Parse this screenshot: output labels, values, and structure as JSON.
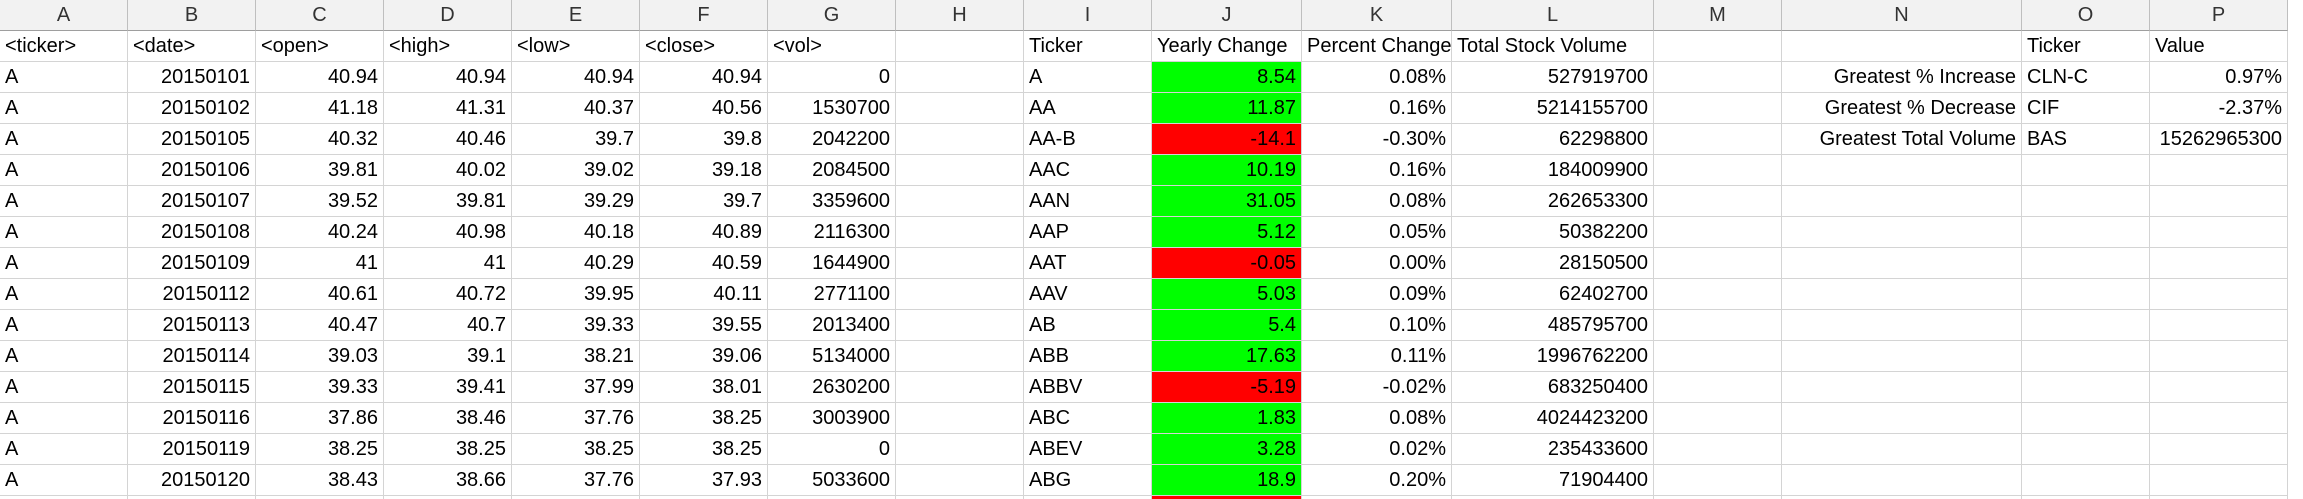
{
  "colors": {
    "positive": "#00ff00",
    "negative": "#ff0000",
    "header": "#f2f2f2",
    "grid": "#d4d4d4"
  },
  "column_letters": [
    "A",
    "B",
    "C",
    "D",
    "E",
    "F",
    "G",
    "H",
    "I",
    "J",
    "K",
    "L",
    "M",
    "N",
    "O",
    "P"
  ],
  "header_row": {
    "A": "<ticker>",
    "B": "<date>",
    "C": "<open>",
    "D": "<high>",
    "E": "<low>",
    "F": "<close>",
    "G": "<vol>",
    "I": "Ticker",
    "J": "Yearly Change",
    "K": "Percent Change",
    "L": "Total Stock Volume",
    "O": "Ticker",
    "P": "Value"
  },
  "raw_rows": [
    [
      "A",
      "20150101",
      "40.94",
      "40.94",
      "40.94",
      "40.94",
      "0"
    ],
    [
      "A",
      "20150102",
      "41.18",
      "41.31",
      "40.37",
      "40.56",
      "1530700"
    ],
    [
      "A",
      "20150105",
      "40.32",
      "40.46",
      "39.7",
      "39.8",
      "2042200"
    ],
    [
      "A",
      "20150106",
      "39.81",
      "40.02",
      "39.02",
      "39.18",
      "2084500"
    ],
    [
      "A",
      "20150107",
      "39.52",
      "39.81",
      "39.29",
      "39.7",
      "3359600"
    ],
    [
      "A",
      "20150108",
      "40.24",
      "40.98",
      "40.18",
      "40.89",
      "2116300"
    ],
    [
      "A",
      "20150109",
      "41",
      "41",
      "40.29",
      "40.59",
      "1644900"
    ],
    [
      "A",
      "20150112",
      "40.61",
      "40.72",
      "39.95",
      "40.11",
      "2771100"
    ],
    [
      "A",
      "20150113",
      "40.47",
      "40.7",
      "39.33",
      "39.55",
      "2013400"
    ],
    [
      "A",
      "20150114",
      "39.03",
      "39.1",
      "38.21",
      "39.06",
      "5134000"
    ],
    [
      "A",
      "20150115",
      "39.33",
      "39.41",
      "37.99",
      "38.01",
      "2630200"
    ],
    [
      "A",
      "20150116",
      "37.86",
      "38.46",
      "37.76",
      "38.25",
      "3003900"
    ],
    [
      "A",
      "20150119",
      "38.25",
      "38.25",
      "38.25",
      "38.25",
      "0"
    ],
    [
      "A",
      "20150120",
      "38.43",
      "38.66",
      "37.76",
      "37.93",
      "5033600"
    ]
  ],
  "summary_rows": [
    {
      "ticker": "A",
      "yearly_change": "8.54",
      "sign": "pos",
      "percent": "0.08%",
      "volume": "527919700"
    },
    {
      "ticker": "AA",
      "yearly_change": "11.87",
      "sign": "pos",
      "percent": "0.16%",
      "volume": "5214155700"
    },
    {
      "ticker": "AA-B",
      "yearly_change": "-14.1",
      "sign": "neg",
      "percent": "-0.30%",
      "volume": "62298800"
    },
    {
      "ticker": "AAC",
      "yearly_change": "10.19",
      "sign": "pos",
      "percent": "0.16%",
      "volume": "184009900"
    },
    {
      "ticker": "AAN",
      "yearly_change": "31.05",
      "sign": "pos",
      "percent": "0.08%",
      "volume": "262653300"
    },
    {
      "ticker": "AAP",
      "yearly_change": "5.12",
      "sign": "pos",
      "percent": "0.05%",
      "volume": "50382200"
    },
    {
      "ticker": "AAT",
      "yearly_change": "-0.05",
      "sign": "neg",
      "percent": "0.00%",
      "volume": "28150500"
    },
    {
      "ticker": "AAV",
      "yearly_change": "5.03",
      "sign": "pos",
      "percent": "0.09%",
      "volume": "62402700"
    },
    {
      "ticker": "AB",
      "yearly_change": "5.4",
      "sign": "pos",
      "percent": "0.10%",
      "volume": "485795700"
    },
    {
      "ticker": "ABB",
      "yearly_change": "17.63",
      "sign": "pos",
      "percent": "0.11%",
      "volume": "1996762200"
    },
    {
      "ticker": "ABBV",
      "yearly_change": "-5.19",
      "sign": "neg",
      "percent": "-0.02%",
      "volume": "683250400"
    },
    {
      "ticker": "ABC",
      "yearly_change": "1.83",
      "sign": "pos",
      "percent": "0.08%",
      "volume": "4024423200"
    },
    {
      "ticker": "ABEV",
      "yearly_change": "3.28",
      "sign": "pos",
      "percent": "0.02%",
      "volume": "235433600"
    },
    {
      "ticker": "ABG",
      "yearly_change": "18.9",
      "sign": "pos",
      "percent": "0.20%",
      "volume": "71904400"
    }
  ],
  "greatest": [
    {
      "label": "Greatest % Increase",
      "ticker": "CLN-C",
      "value": "0.97%"
    },
    {
      "label": "Greatest % Decrease",
      "ticker": "CIF",
      "value": "-2.37%"
    },
    {
      "label": "Greatest Total Volume",
      "ticker": "BAS",
      "value": "15262965300"
    }
  ]
}
